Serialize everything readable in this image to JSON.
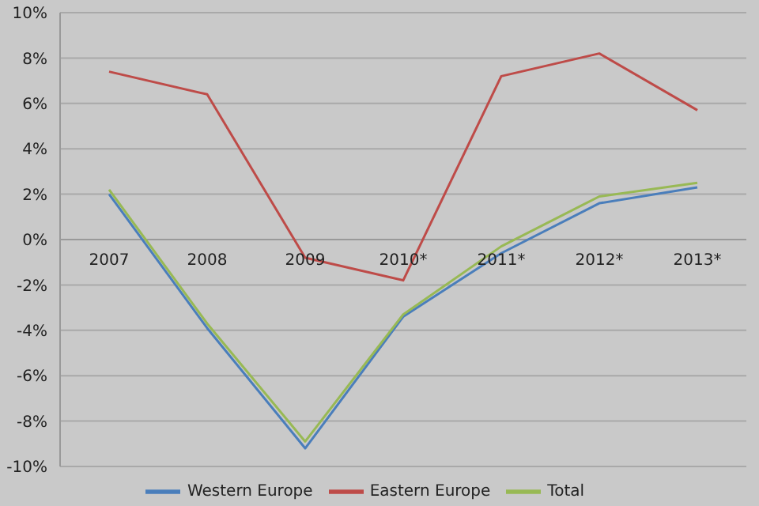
{
  "chart_data": {
    "type": "line",
    "categories": [
      "2007",
      "2008",
      "2009",
      "2010*",
      "2011*",
      "2012*",
      "2013*"
    ],
    "series": [
      {
        "name": "Western Europe",
        "color": "#4a7ebb",
        "values": [
          2.0,
          -3.9,
          -9.2,
          -3.4,
          -0.6,
          1.6,
          2.3
        ]
      },
      {
        "name": "Eastern Europe",
        "color": "#be4b48",
        "values": [
          7.4,
          6.4,
          -0.8,
          -1.8,
          7.2,
          8.2,
          5.7
        ]
      },
      {
        "name": "Total",
        "color": "#98b954",
        "values": [
          2.2,
          -3.7,
          -8.9,
          -3.3,
          -0.3,
          1.9,
          2.5
        ]
      }
    ],
    "ylim": [
      -10,
      10
    ],
    "yticks": [
      {
        "value": -10,
        "label": "-10%"
      },
      {
        "value": -8,
        "label": "-8%"
      },
      {
        "value": -6,
        "label": "-6%"
      },
      {
        "value": -4,
        "label": "-4%"
      },
      {
        "value": -2,
        "label": "-2%"
      },
      {
        "value": 0,
        "label": "0%"
      },
      {
        "value": 2,
        "label": "2%"
      },
      {
        "value": 4,
        "label": "4%"
      },
      {
        "value": 6,
        "label": "6%"
      },
      {
        "value": 8,
        "label": "8%"
      },
      {
        "value": 10,
        "label": "10%"
      }
    ],
    "grid": "y",
    "legend": "bottom",
    "marker": "none",
    "line_style": "solid"
  }
}
